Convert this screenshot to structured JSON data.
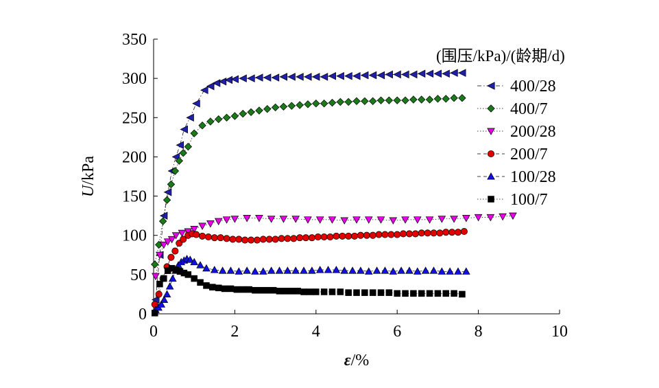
{
  "chart_data": {
    "type": "scatter",
    "title": "",
    "xlabel_symbol": "ε",
    "xlabel_unit": "/%",
    "ylabel_symbol": "U",
    "ylabel_unit": "/kPa",
    "xlim": [
      0,
      10
    ],
    "ylim": [
      0,
      350
    ],
    "xticks": [
      "0",
      "2",
      "4",
      "6",
      "8",
      "10"
    ],
    "yticks": [
      "0",
      "50",
      "100",
      "150",
      "200",
      "250",
      "300",
      "350"
    ],
    "grid": false,
    "legend_title": "(围压/kPa)/(龄期/d)",
    "legend_position": "top-right",
    "series": [
      {
        "name": "400/28",
        "marker": "triangle-left",
        "color": "#1f1fa8",
        "line": "dashdot",
        "x": [
          0.05,
          0.15,
          0.25,
          0.35,
          0.45,
          0.55,
          0.65,
          0.75,
          0.9,
          1.05,
          1.25,
          1.4,
          1.55,
          1.7,
          1.85,
          2.0,
          2.2,
          2.4,
          2.6,
          2.8,
          3.0,
          3.2,
          3.4,
          3.6,
          3.8,
          4.0,
          4.2,
          4.4,
          4.6,
          4.8,
          5.0,
          5.2,
          5.4,
          5.6,
          5.8,
          6.0,
          6.2,
          6.4,
          6.6,
          6.8,
          7.0,
          7.2,
          7.4,
          7.6
        ],
        "y": [
          18,
          75,
          125,
          155,
          182,
          200,
          215,
          235,
          250,
          268,
          285,
          290,
          294,
          296,
          298,
          299,
          300,
          300,
          301,
          301,
          301,
          302,
          302,
          302,
          302,
          302,
          302,
          303,
          303,
          303,
          303,
          304,
          304,
          304,
          305,
          305,
          305,
          305,
          306,
          306,
          306,
          306,
          307,
          307
        ]
      },
      {
        "name": "400/7",
        "marker": "diamond",
        "color": "#1a7a1a",
        "line": "dotted",
        "x": [
          0.03,
          0.13,
          0.23,
          0.33,
          0.43,
          0.53,
          0.63,
          0.73,
          0.85,
          1.0,
          1.2,
          1.4,
          1.6,
          1.8,
          2.0,
          2.2,
          2.4,
          2.6,
          2.8,
          3.0,
          3.2,
          3.4,
          3.6,
          3.8,
          4.0,
          4.2,
          4.4,
          4.6,
          4.8,
          5.0,
          5.2,
          5.4,
          5.6,
          5.8,
          6.0,
          6.2,
          6.4,
          6.6,
          6.8,
          7.0,
          7.2,
          7.4,
          7.6
        ],
        "y": [
          63,
          88,
          118,
          145,
          165,
          182,
          195,
          205,
          213,
          230,
          240,
          245,
          248,
          250,
          252,
          255,
          257,
          259,
          261,
          263,
          264,
          265,
          266,
          267,
          268,
          268,
          269,
          270,
          270,
          271,
          271,
          271,
          272,
          272,
          272,
          272,
          273,
          273,
          273,
          274,
          274,
          275,
          275
        ]
      },
      {
        "name": "200/28",
        "marker": "triangle-down",
        "color": "#e600e6",
        "line": "dotted",
        "x": [
          0.05,
          0.15,
          0.25,
          0.35,
          0.45,
          0.55,
          0.7,
          0.85,
          1.0,
          1.2,
          1.4,
          1.6,
          1.8,
          2.0,
          2.3,
          2.6,
          2.9,
          3.2,
          3.5,
          3.8,
          4.1,
          4.4,
          4.7,
          5.0,
          5.3,
          5.6,
          5.9,
          6.2,
          6.5,
          6.8,
          7.1,
          7.4,
          7.7,
          8.0,
          8.3,
          8.6,
          8.85
        ],
        "y": [
          48,
          75,
          88,
          92,
          95,
          100,
          103,
          105,
          108,
          112,
          115,
          118,
          120,
          121,
          122,
          122,
          121,
          121,
          121,
          120,
          120,
          120,
          119,
          120,
          120,
          120,
          119,
          120,
          120,
          120,
          121,
          121,
          122,
          123,
          123,
          124,
          125
        ]
      },
      {
        "name": "200/7",
        "marker": "circle",
        "color": "#e00000",
        "line": "dashed",
        "x": [
          0.03,
          0.13,
          0.23,
          0.33,
          0.43,
          0.53,
          0.63,
          0.73,
          0.85,
          0.95,
          1.05,
          1.2,
          1.35,
          1.5,
          1.65,
          1.8,
          1.95,
          2.1,
          2.25,
          2.4,
          2.55,
          2.7,
          2.85,
          3.0,
          3.15,
          3.3,
          3.45,
          3.6,
          3.75,
          3.9,
          4.05,
          4.2,
          4.35,
          4.5,
          4.65,
          4.8,
          4.95,
          5.1,
          5.25,
          5.4,
          5.55,
          5.7,
          5.85,
          6.0,
          6.15,
          6.3,
          6.45,
          6.6,
          6.75,
          6.9,
          7.05,
          7.2,
          7.35,
          7.5,
          7.65
        ],
        "y": [
          12,
          25,
          45,
          60,
          72,
          80,
          90,
          95,
          100,
          102,
          101,
          99,
          98,
          97,
          97,
          96,
          95,
          95,
          94,
          94,
          94,
          95,
          95,
          95,
          96,
          96,
          96,
          97,
          97,
          97,
          98,
          98,
          98,
          99,
          99,
          99,
          99,
          100,
          100,
          100,
          101,
          101,
          101,
          101,
          102,
          102,
          102,
          103,
          103,
          103,
          103,
          104,
          104,
          104,
          105
        ]
      },
      {
        "name": "100/28",
        "marker": "triangle-up",
        "color": "#1010e0",
        "line": "dashed",
        "x": [
          0.05,
          0.12,
          0.19,
          0.26,
          0.33,
          0.4,
          0.47,
          0.54,
          0.61,
          0.68,
          0.75,
          0.82,
          0.9,
          1.0,
          1.15,
          1.3,
          1.5,
          1.7,
          1.9,
          2.1,
          2.3,
          2.5,
          2.7,
          2.9,
          3.1,
          3.3,
          3.5,
          3.7,
          3.9,
          4.1,
          4.3,
          4.5,
          4.7,
          4.9,
          5.1,
          5.3,
          5.5,
          5.7,
          5.9,
          6.1,
          6.3,
          6.5,
          6.7,
          6.9,
          7.1,
          7.3,
          7.5,
          7.7
        ],
        "y": [
          5,
          8,
          12,
          18,
          25,
          35,
          45,
          55,
          62,
          66,
          68,
          70,
          69,
          66,
          62,
          58,
          56,
          55,
          55,
          54,
          55,
          54,
          54,
          55,
          55,
          55,
          55,
          55,
          55,
          56,
          56,
          56,
          55,
          55,
          55,
          54,
          55,
          55,
          54,
          55,
          55,
          54,
          55,
          55,
          54,
          54,
          54,
          54
        ]
      },
      {
        "name": "100/7",
        "marker": "square",
        "color": "#000000",
        "line": "dotted",
        "x": [
          0.03,
          0.15,
          0.25,
          0.35,
          0.45,
          0.55,
          0.65,
          0.75,
          0.85,
          1.0,
          1.15,
          1.3,
          1.45,
          1.6,
          1.75,
          1.9,
          2.05,
          2.2,
          2.35,
          2.5,
          2.65,
          2.8,
          2.95,
          3.1,
          3.25,
          3.4,
          3.55,
          3.7,
          3.85,
          4.0,
          4.2,
          4.4,
          4.6,
          4.8,
          5.0,
          5.2,
          5.4,
          5.6,
          5.8,
          6.0,
          6.2,
          6.4,
          6.6,
          6.8,
          7.0,
          7.2,
          7.4,
          7.6
        ],
        "y": [
          1,
          38,
          45,
          55,
          58,
          56,
          54,
          52,
          50,
          45,
          40,
          36,
          34,
          33,
          32,
          32,
          31,
          31,
          31,
          30,
          30,
          30,
          30,
          29,
          29,
          29,
          29,
          28,
          28,
          28,
          28,
          28,
          28,
          27,
          27,
          27,
          27,
          27,
          27,
          26,
          26,
          26,
          26,
          26,
          26,
          26,
          26,
          25
        ]
      }
    ]
  }
}
